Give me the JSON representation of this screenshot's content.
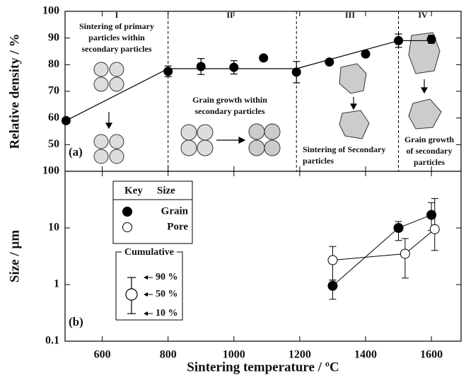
{
  "chart_data": [
    {
      "type": "scatter",
      "ylabel": "Relative density / %",
      "panel_label": "(a)",
      "xlim": [
        487,
        1690
      ],
      "ylim": [
        40,
        100
      ],
      "yticks": [
        50,
        60,
        70,
        80,
        90,
        100
      ],
      "x": [
        490,
        800,
        900,
        1000,
        1090,
        1190,
        1290,
        1400,
        1500,
        1600
      ],
      "values": [
        59,
        77.5,
        79.3,
        79,
        82.5,
        77.2,
        81,
        84,
        89,
        89.5
      ],
      "errors": [
        null,
        2,
        3,
        2.5,
        null,
        4,
        null,
        null,
        2.5,
        1.5
      ],
      "color": "#000000",
      "fit_line": {
        "x": [
          490,
          800,
          1190,
          1500,
          1600
        ],
        "values": [
          59,
          78.5,
          78.5,
          89,
          89
        ]
      },
      "boundaries": [
        800,
        1190,
        1500
      ],
      "regions": [
        {
          "label": "I",
          "text": [
            "Sintering of primary",
            "particles within",
            "secondary particles"
          ]
        },
        {
          "label": "II",
          "text": [
            "Grain growth within",
            "secondary particles"
          ]
        },
        {
          "label": "III",
          "text": [
            "Sintering of Secondary",
            "particles"
          ]
        },
        {
          "label": "IV",
          "text": [
            "Grain growth",
            "of secondary",
            "particles"
          ]
        }
      ]
    },
    {
      "type": "scatter",
      "log_y": true,
      "ylabel": "Size / µm",
      "xlabel": "Sintering temperature / ºC",
      "panel_label": "(b)",
      "xlim": [
        487,
        1690
      ],
      "xticks": [
        600,
        800,
        1000,
        1200,
        1400,
        1600
      ],
      "ylim": [
        0.1,
        100
      ],
      "yticks": [
        0.1,
        1,
        10,
        100
      ],
      "series": [
        {
          "name": "Grain",
          "color": "#000000",
          "x": [
            1300,
            1500,
            1600
          ],
          "values": [
            0.95,
            10,
            17
          ],
          "low": [
            0.55,
            6,
            9
          ],
          "high": [
            1.2,
            13,
            28
          ]
        },
        {
          "name": "Pore",
          "color": "#ffffff",
          "x": [
            1300,
            1520,
            1610
          ],
          "values": [
            2.7,
            3.5,
            9.5
          ],
          "low": [
            1.2,
            1.3,
            4
          ],
          "high": [
            4.7,
            6.5,
            33
          ]
        }
      ],
      "legend_header": [
        "Key",
        "Size"
      ],
      "cumulative_key": {
        "title": "Cumulative",
        "labels": [
          "90 %",
          "50 %",
          "10 %"
        ]
      }
    }
  ]
}
